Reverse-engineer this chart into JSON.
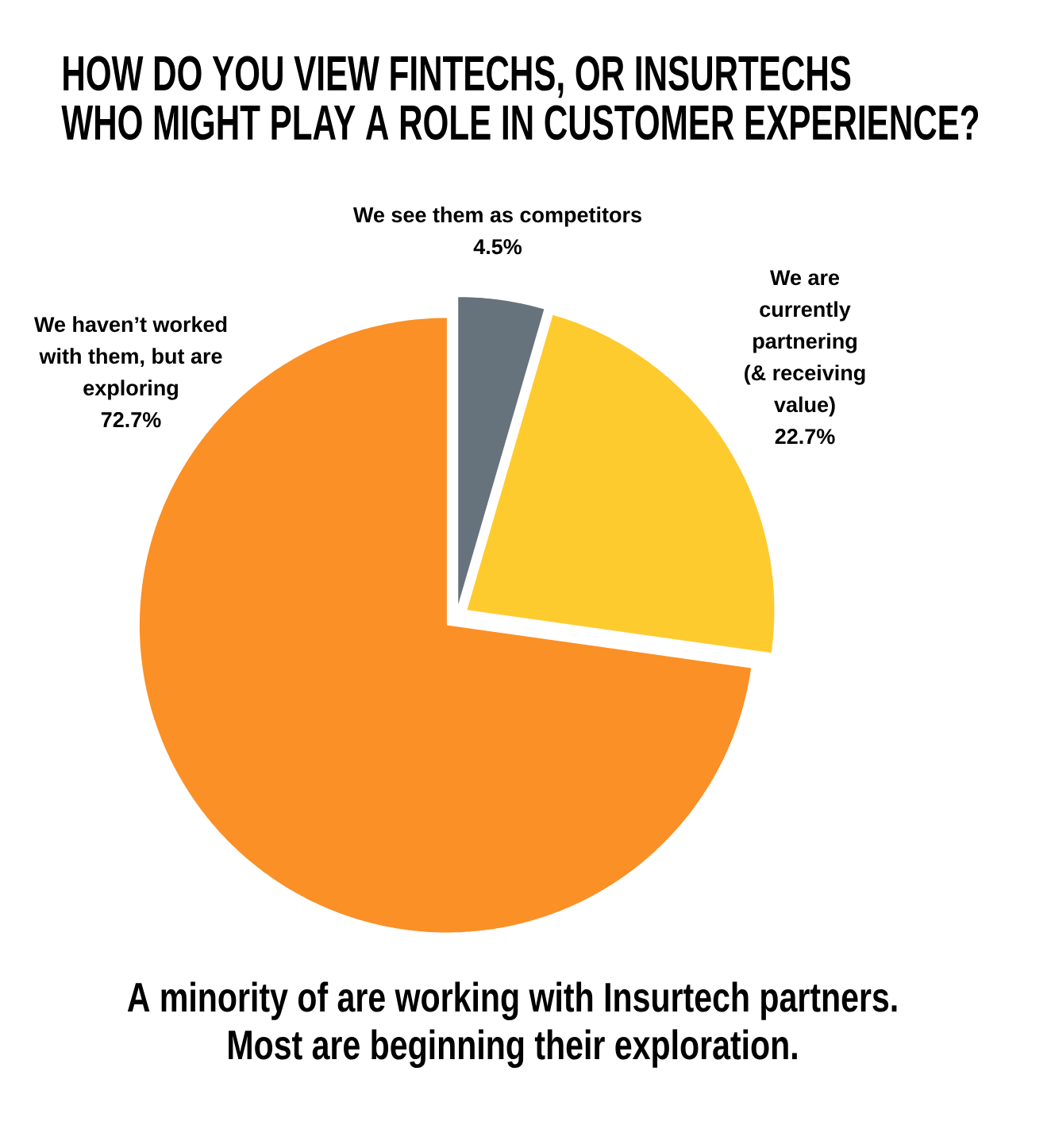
{
  "chart_data": {
    "type": "pie",
    "title": "HOW DO YOU VIEW FINTECHS, OR INSURTECHS WHO MIGHT PLAY A ROLE IN CUSTOMER EXPERIENCE?",
    "categories": [
      "We see them as competitors",
      "We are currently partnering (& receiving value)",
      "We haven’t worked with them, but are exploring"
    ],
    "values": [
      4.5,
      22.7,
      72.7
    ],
    "value_labels": [
      "4.5%",
      "22.7%",
      "72.7%"
    ],
    "colors": [
      "#67737c",
      "#fecb2f",
      "#fb9026"
    ],
    "annotations": [
      "A minority of are working with Insurtech partners. Most are beginning their exploration."
    ]
  }
}
